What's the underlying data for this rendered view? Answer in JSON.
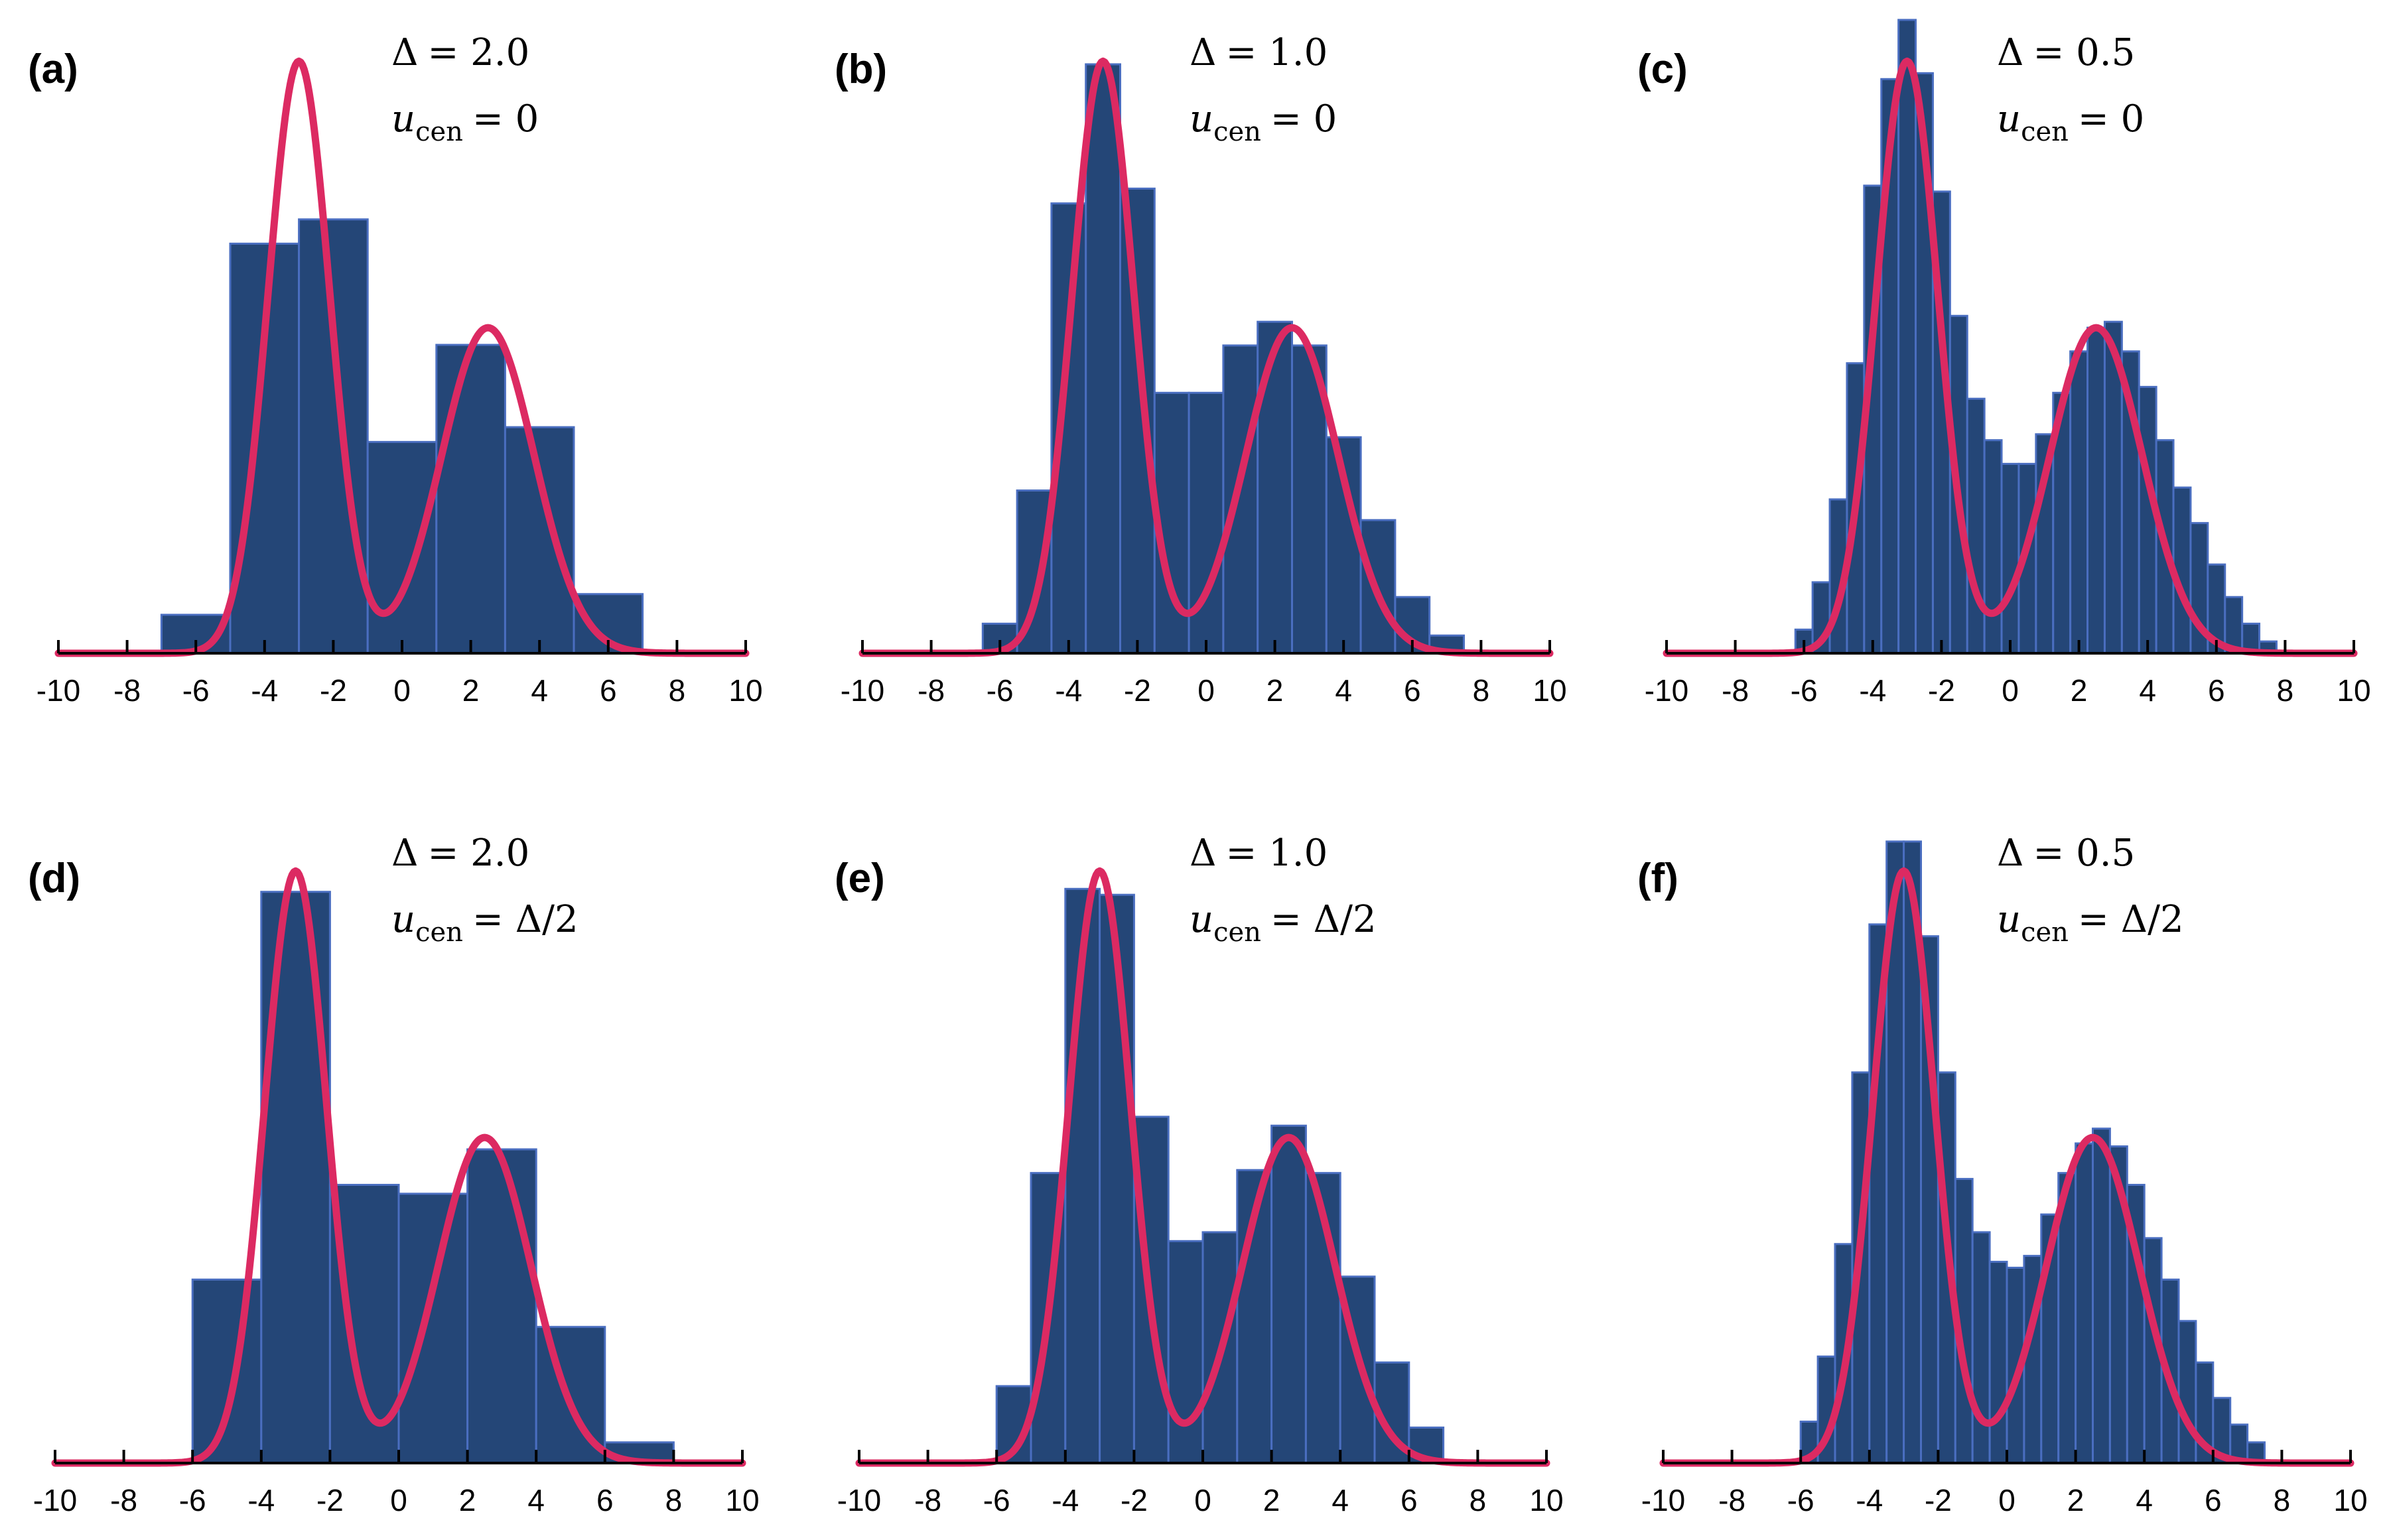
{
  "colors": {
    "bar_fill": "#244677",
    "bar_edge": "#4a6ec0",
    "curve": "#dc2a62",
    "axis": "#000000"
  },
  "chart_data": [
    {
      "type": "bar",
      "panel_label": "(a)",
      "annotation": {
        "delta_symbol": "Δ",
        "delta_value": "= 2.0",
        "u_symbol": "u",
        "u_sub": "cen",
        "u_value": "= 0"
      },
      "bin_width": 2.0,
      "bin_edges": [
        -7,
        -5,
        -3,
        -1,
        1,
        3,
        5,
        7
      ],
      "values": [
        0.065,
        0.692,
        0.733,
        0.357,
        0.521,
        0.382,
        0.1
      ],
      "xlim": [
        -10,
        10
      ],
      "ylim": [
        0,
        1.07
      ],
      "xticks": [
        "-10",
        "-8",
        "-6",
        "-4",
        "-2",
        "0",
        "2",
        "4",
        "6",
        "8",
        "10"
      ],
      "curve": {
        "type": "bimodal-density",
        "peaks": [
          {
            "mu": -3.0,
            "sigma": 0.9,
            "weight": 1.0
          },
          {
            "mu": 2.5,
            "sigma": 1.35,
            "weight": 0.55
          }
        ]
      }
    },
    {
      "type": "bar",
      "panel_label": "(b)",
      "annotation": {
        "delta_symbol": "Δ",
        "delta_value": "= 1.0",
        "u_symbol": "u",
        "u_sub": "cen",
        "u_value": "= 0"
      },
      "bin_width": 1.0,
      "bin_edges": [
        -6.5,
        -5.5,
        -4.5,
        -3.5,
        -2.5,
        -1.5,
        -0.5,
        0.5,
        1.5,
        2.5,
        3.5,
        4.5,
        5.5,
        6.5,
        7.5
      ],
      "values": [
        0.05,
        0.275,
        0.76,
        0.995,
        0.785,
        0.44,
        0.44,
        0.52,
        0.56,
        0.52,
        0.365,
        0.225,
        0.095,
        0.03
      ],
      "xlim": [
        -10,
        10
      ],
      "ylim": [
        0,
        1.07
      ],
      "xticks": [
        "-10",
        "-8",
        "-6",
        "-4",
        "-2",
        "0",
        "2",
        "4",
        "6",
        "8",
        "10"
      ],
      "curve": {
        "type": "bimodal-density",
        "peaks": [
          {
            "mu": -3.0,
            "sigma": 0.9,
            "weight": 1.0
          },
          {
            "mu": 2.5,
            "sigma": 1.35,
            "weight": 0.55
          }
        ]
      }
    },
    {
      "type": "bar",
      "panel_label": "(c)",
      "annotation": {
        "delta_symbol": "Δ",
        "delta_value": "= 0.5",
        "u_symbol": "u",
        "u_sub": "cen",
        "u_value": "= 0"
      },
      "bin_width": 0.5,
      "bin_edges": [
        -6.25,
        -5.75,
        -5.25,
        -4.75,
        -4.25,
        -3.75,
        -3.25,
        -2.75,
        -2.25,
        -1.75,
        -1.25,
        -0.75,
        -0.25,
        0.25,
        0.75,
        1.25,
        1.75,
        2.25,
        2.75,
        3.25,
        3.75,
        4.25,
        4.75,
        5.25,
        5.75,
        6.25,
        6.75,
        7.25,
        7.75
      ],
      "values": [
        0.04,
        0.12,
        0.26,
        0.49,
        0.79,
        0.97,
        1.07,
        0.98,
        0.78,
        0.57,
        0.43,
        0.36,
        0.32,
        0.32,
        0.37,
        0.44,
        0.51,
        0.55,
        0.56,
        0.51,
        0.45,
        0.36,
        0.28,
        0.22,
        0.15,
        0.095,
        0.05,
        0.02
      ],
      "xlim": [
        -10,
        10
      ],
      "ylim": [
        0,
        1.07
      ],
      "xticks": [
        "-10",
        "-8",
        "-6",
        "-4",
        "-2",
        "0",
        "2",
        "4",
        "6",
        "8",
        "10"
      ],
      "curve": {
        "type": "bimodal-density",
        "peaks": [
          {
            "mu": -3.0,
            "sigma": 0.9,
            "weight": 1.0
          },
          {
            "mu": 2.5,
            "sigma": 1.35,
            "weight": 0.55
          }
        ]
      }
    },
    {
      "type": "bar",
      "panel_label": "(d)",
      "annotation": {
        "delta_symbol": "Δ",
        "delta_value": "= 2.0",
        "u_symbol": "u",
        "u_sub": "cen",
        "u_value": "= Δ/2"
      },
      "bin_width": 2.0,
      "bin_edges": [
        -6,
        -4,
        -2,
        0,
        2,
        4,
        6,
        8
      ],
      "values": [
        0.31,
        0.965,
        0.47,
        0.455,
        0.53,
        0.23,
        0.035
      ],
      "xlim": [
        -10,
        10
      ],
      "ylim": [
        0,
        1.07
      ],
      "xticks": [
        "-10",
        "-8",
        "-6",
        "-4",
        "-2",
        "0",
        "2",
        "4",
        "6",
        "8",
        "10"
      ],
      "curve": {
        "type": "bimodal-density",
        "peaks": [
          {
            "mu": -3.0,
            "sigma": 0.9,
            "weight": 1.0
          },
          {
            "mu": 2.5,
            "sigma": 1.35,
            "weight": 0.55
          }
        ]
      }
    },
    {
      "type": "bar",
      "panel_label": "(e)",
      "annotation": {
        "delta_symbol": "Δ",
        "delta_value": "= 1.0",
        "u_symbol": "u",
        "u_sub": "cen",
        "u_value": "= Δ/2"
      },
      "bin_width": 1.0,
      "bin_edges": [
        -6,
        -5,
        -4,
        -3,
        -2,
        -1,
        0,
        1,
        2,
        3,
        4,
        5,
        6,
        7
      ],
      "values": [
        0.13,
        0.49,
        0.97,
        0.96,
        0.585,
        0.375,
        0.39,
        0.495,
        0.57,
        0.49,
        0.315,
        0.17,
        0.06
      ],
      "xlim": [
        -10,
        10
      ],
      "ylim": [
        0,
        1.07
      ],
      "xticks": [
        "-10",
        "-8",
        "-6",
        "-4",
        "-2",
        "0",
        "2",
        "4",
        "6",
        "8",
        "10"
      ],
      "curve": {
        "type": "bimodal-density",
        "peaks": [
          {
            "mu": -3.0,
            "sigma": 0.9,
            "weight": 1.0
          },
          {
            "mu": 2.5,
            "sigma": 1.35,
            "weight": 0.55
          }
        ]
      }
    },
    {
      "type": "bar",
      "panel_label": "(f)",
      "annotation": {
        "delta_symbol": "Δ",
        "delta_value": "= 0.5",
        "u_symbol": "u",
        "u_sub": "cen",
        "u_value": "= Δ/2"
      },
      "bin_width": 0.5,
      "bin_edges": [
        -6.0,
        -5.5,
        -5.0,
        -4.5,
        -4.0,
        -3.5,
        -3.0,
        -2.5,
        -2.0,
        -1.5,
        -1.0,
        -0.5,
        0.0,
        0.5,
        1.0,
        1.5,
        2.0,
        2.5,
        3.0,
        3.5,
        4.0,
        4.5,
        5.0,
        5.5,
        6.0,
        6.5,
        7.0,
        7.5
      ],
      "values": [
        0.07,
        0.18,
        0.37,
        0.66,
        0.91,
        1.05,
        1.05,
        0.89,
        0.66,
        0.48,
        0.39,
        0.34,
        0.33,
        0.35,
        0.42,
        0.49,
        0.54,
        0.565,
        0.535,
        0.47,
        0.38,
        0.31,
        0.24,
        0.17,
        0.11,
        0.065,
        0.035
      ],
      "xlim": [
        -10,
        10
      ],
      "ylim": [
        0,
        1.07
      ],
      "xticks": [
        "-10",
        "-8",
        "-6",
        "-4",
        "-2",
        "0",
        "2",
        "4",
        "6",
        "8",
        "10"
      ],
      "curve": {
        "type": "bimodal-density",
        "peaks": [
          {
            "mu": -3.0,
            "sigma": 0.9,
            "weight": 1.0
          },
          {
            "mu": 2.5,
            "sigma": 1.35,
            "weight": 0.55
          }
        ]
      }
    }
  ]
}
